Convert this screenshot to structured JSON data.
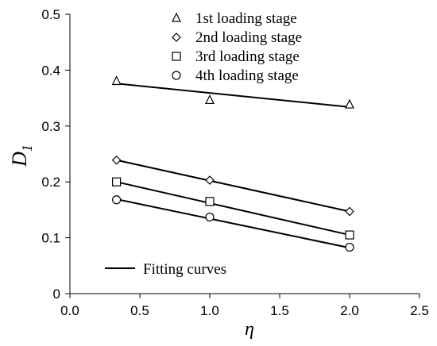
{
  "chart_data": {
    "type": "scatter",
    "xlabel": "η",
    "ylabel": "D",
    "ylabel_subscript": "1",
    "xlim": [
      0.0,
      2.5
    ],
    "ylim": [
      0,
      0.5
    ],
    "x_ticks": [
      "0.0",
      "0.5",
      "1.0",
      "1.5",
      "2.0",
      "2.5"
    ],
    "y_ticks": [
      "0",
      "0.1",
      "0.2",
      "0.3",
      "0.4",
      "0.5"
    ],
    "grid": false,
    "legend_position": "top-right",
    "series": [
      {
        "name": "1st loading stage",
        "marker": "triangle",
        "x": [
          0.333,
          1.0,
          2.0
        ],
        "y": [
          0.38,
          0.346,
          0.338
        ],
        "fit": [
          0.376,
          0.334
        ]
      },
      {
        "name": "2nd loading stage",
        "marker": "diamond",
        "x": [
          0.333,
          1.0,
          2.0
        ],
        "y": [
          0.239,
          0.203,
          0.147
        ],
        "fit": [
          0.239,
          0.147
        ]
      },
      {
        "name": "3rd loading stage",
        "marker": "square",
        "x": [
          0.333,
          1.0,
          2.0
        ],
        "y": [
          0.2,
          0.165,
          0.105
        ],
        "fit": [
          0.2,
          0.105
        ]
      },
      {
        "name": "4th loading stage",
        "marker": "circle",
        "x": [
          0.333,
          1.0,
          2.0
        ],
        "y": [
          0.168,
          0.137,
          0.083
        ],
        "fit": [
          0.169,
          0.082
        ]
      }
    ],
    "fit_legend_label": "Fitting curves",
    "colors": {
      "line": "#000000",
      "marker_fill": "#ffffff"
    }
  }
}
